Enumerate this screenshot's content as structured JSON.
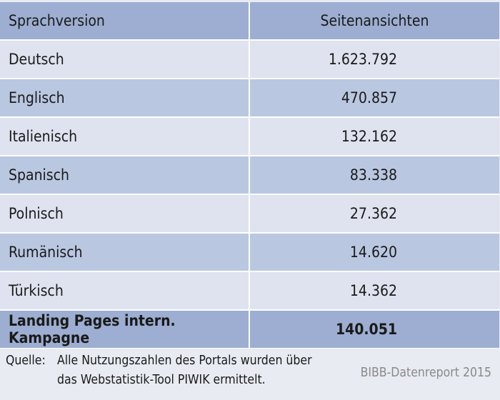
{
  "table": {
    "headers": [
      "Sprachversion",
      "Seitenansichten"
    ],
    "rows": [
      {
        "label": "Deutsch",
        "value": "1.623.792"
      },
      {
        "label": "Englisch",
        "value": "470.857"
      },
      {
        "label": "Italienisch",
        "value": "132.162"
      },
      {
        "label": "Spanisch",
        "value": "83.338"
      },
      {
        "label": "Polnisch",
        "value": "27.362"
      },
      {
        "label": "Rumänisch",
        "value": "14.620"
      },
      {
        "label": "Türkisch",
        "value": "14.362"
      }
    ],
    "total": {
      "label": "Landing Pages intern. Kampagne",
      "value": "140.051"
    }
  },
  "footer": {
    "source_label": "Quelle:",
    "source_line1": "Alle Nutzungszahlen des Portals wurden über",
    "source_line2": "das Webstatistik-Tool PIWIK ermittelt.",
    "report": "BIBB-Datenreport 2015"
  },
  "colors": {
    "header_bg": "#9daed2",
    "row_light": "#dfe3ef",
    "row_dark": "#b9c7e1",
    "footer_bg": "#e9ebf3"
  }
}
